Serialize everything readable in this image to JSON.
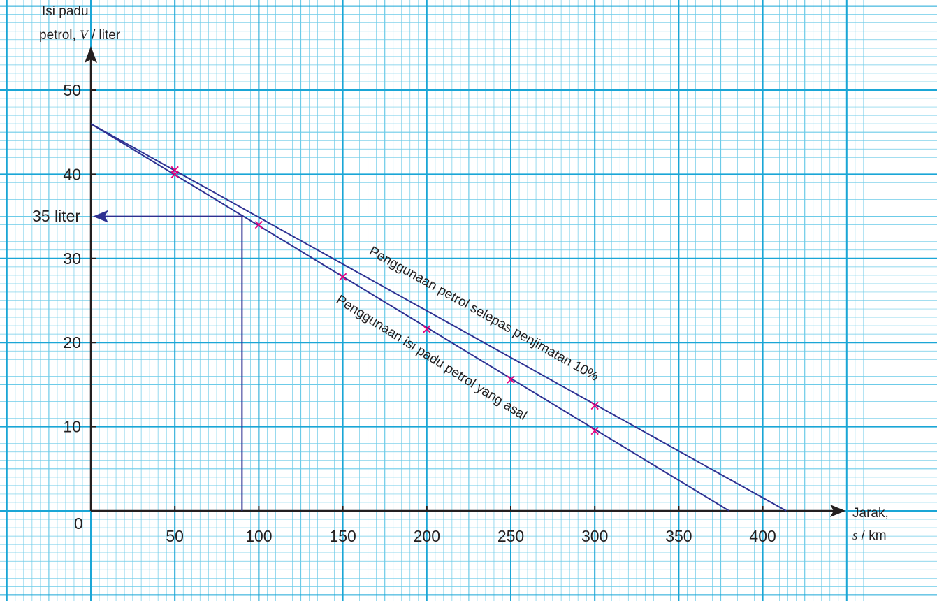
{
  "chart_data": {
    "type": "line",
    "ylabel_line1": "Isi padu",
    "ylabel_line2_prefix": "petrol, ",
    "ylabel_var": "V",
    "ylabel_unit": " / liter",
    "xlabel_line1": "Jarak,",
    "xlabel_var": "s",
    "xlabel_unit": " / km",
    "origin_label": "0",
    "xlim": [
      -50,
      460
    ],
    "ylim": [
      -10,
      60
    ],
    "x_ticks": [
      50,
      100,
      150,
      200,
      250,
      300,
      350,
      400
    ],
    "y_ticks": [
      10,
      20,
      30,
      40,
      50
    ],
    "grid": true,
    "series": [
      {
        "name": "Penggunaan petrol selepas penjimatan 10%",
        "line": [
          [
            0,
            46
          ],
          [
            414,
            0
          ]
        ],
        "points": [
          [
            50,
            40.5
          ],
          [
            300,
            12.5
          ]
        ]
      },
      {
        "name": "Penggunaan isi padu petrol yang asal",
        "line": [
          [
            0,
            46
          ],
          [
            380,
            0
          ]
        ],
        "points": [
          [
            50,
            40
          ],
          [
            100,
            34
          ],
          [
            150,
            27.8
          ],
          [
            200,
            21.6
          ],
          [
            250,
            15.6
          ],
          [
            300,
            9.5
          ]
        ]
      }
    ],
    "annotation": {
      "label": "35 liter",
      "x": 90,
      "y": 35
    },
    "colors": {
      "grid_fine": "#6ccbe8",
      "grid_major": "#1aa6d6",
      "line": "#2e3192",
      "marker": "#e6007e"
    }
  }
}
